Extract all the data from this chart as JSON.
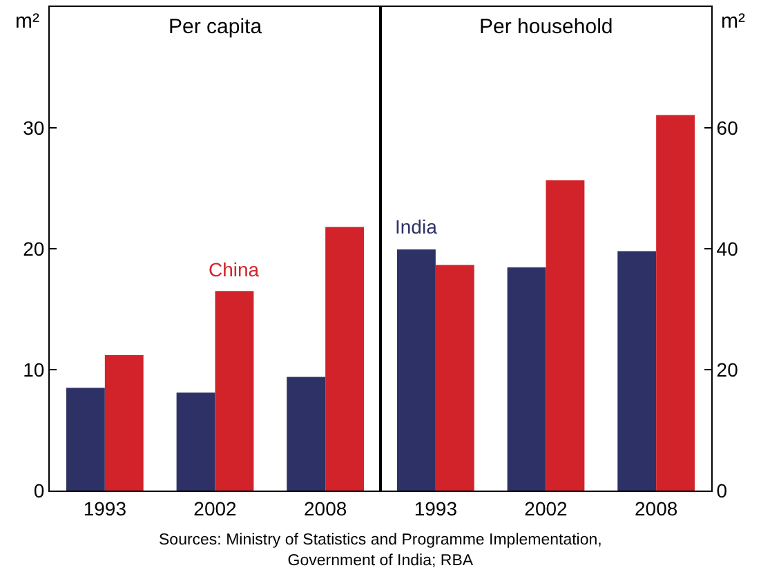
{
  "chart_data": [
    {
      "type": "bar",
      "title": "Per capita",
      "ylabel": "m²",
      "categories": [
        "1993",
        "2002",
        "2008"
      ],
      "ylim": [
        0,
        40
      ],
      "yticks": [
        0,
        10,
        20,
        30
      ],
      "series": [
        {
          "color": "#2e3165",
          "values": [
            8.5,
            8.1,
            9.4
          ]
        },
        {
          "name": "China",
          "color": "#d2232a",
          "values": [
            11.2,
            16.5,
            21.8
          ]
        }
      ],
      "annotations": [
        "Sources: Ministry of Statistics and Programme Implementation, Government of India; RBA"
      ]
    },
    {
      "type": "bar",
      "title": "Per household",
      "ylabel": "m²",
      "categories": [
        "1993",
        "2002",
        "2008"
      ],
      "ylim": [
        0,
        80
      ],
      "yticks": [
        0,
        20,
        40,
        60
      ],
      "series": [
        {
          "name": "India",
          "color": "#2e3165",
          "values": [
            39.9,
            36.9,
            39.6
          ]
        },
        {
          "color": "#d2232a",
          "values": [
            37.3,
            51.3,
            62.1
          ]
        }
      ]
    }
  ]
}
